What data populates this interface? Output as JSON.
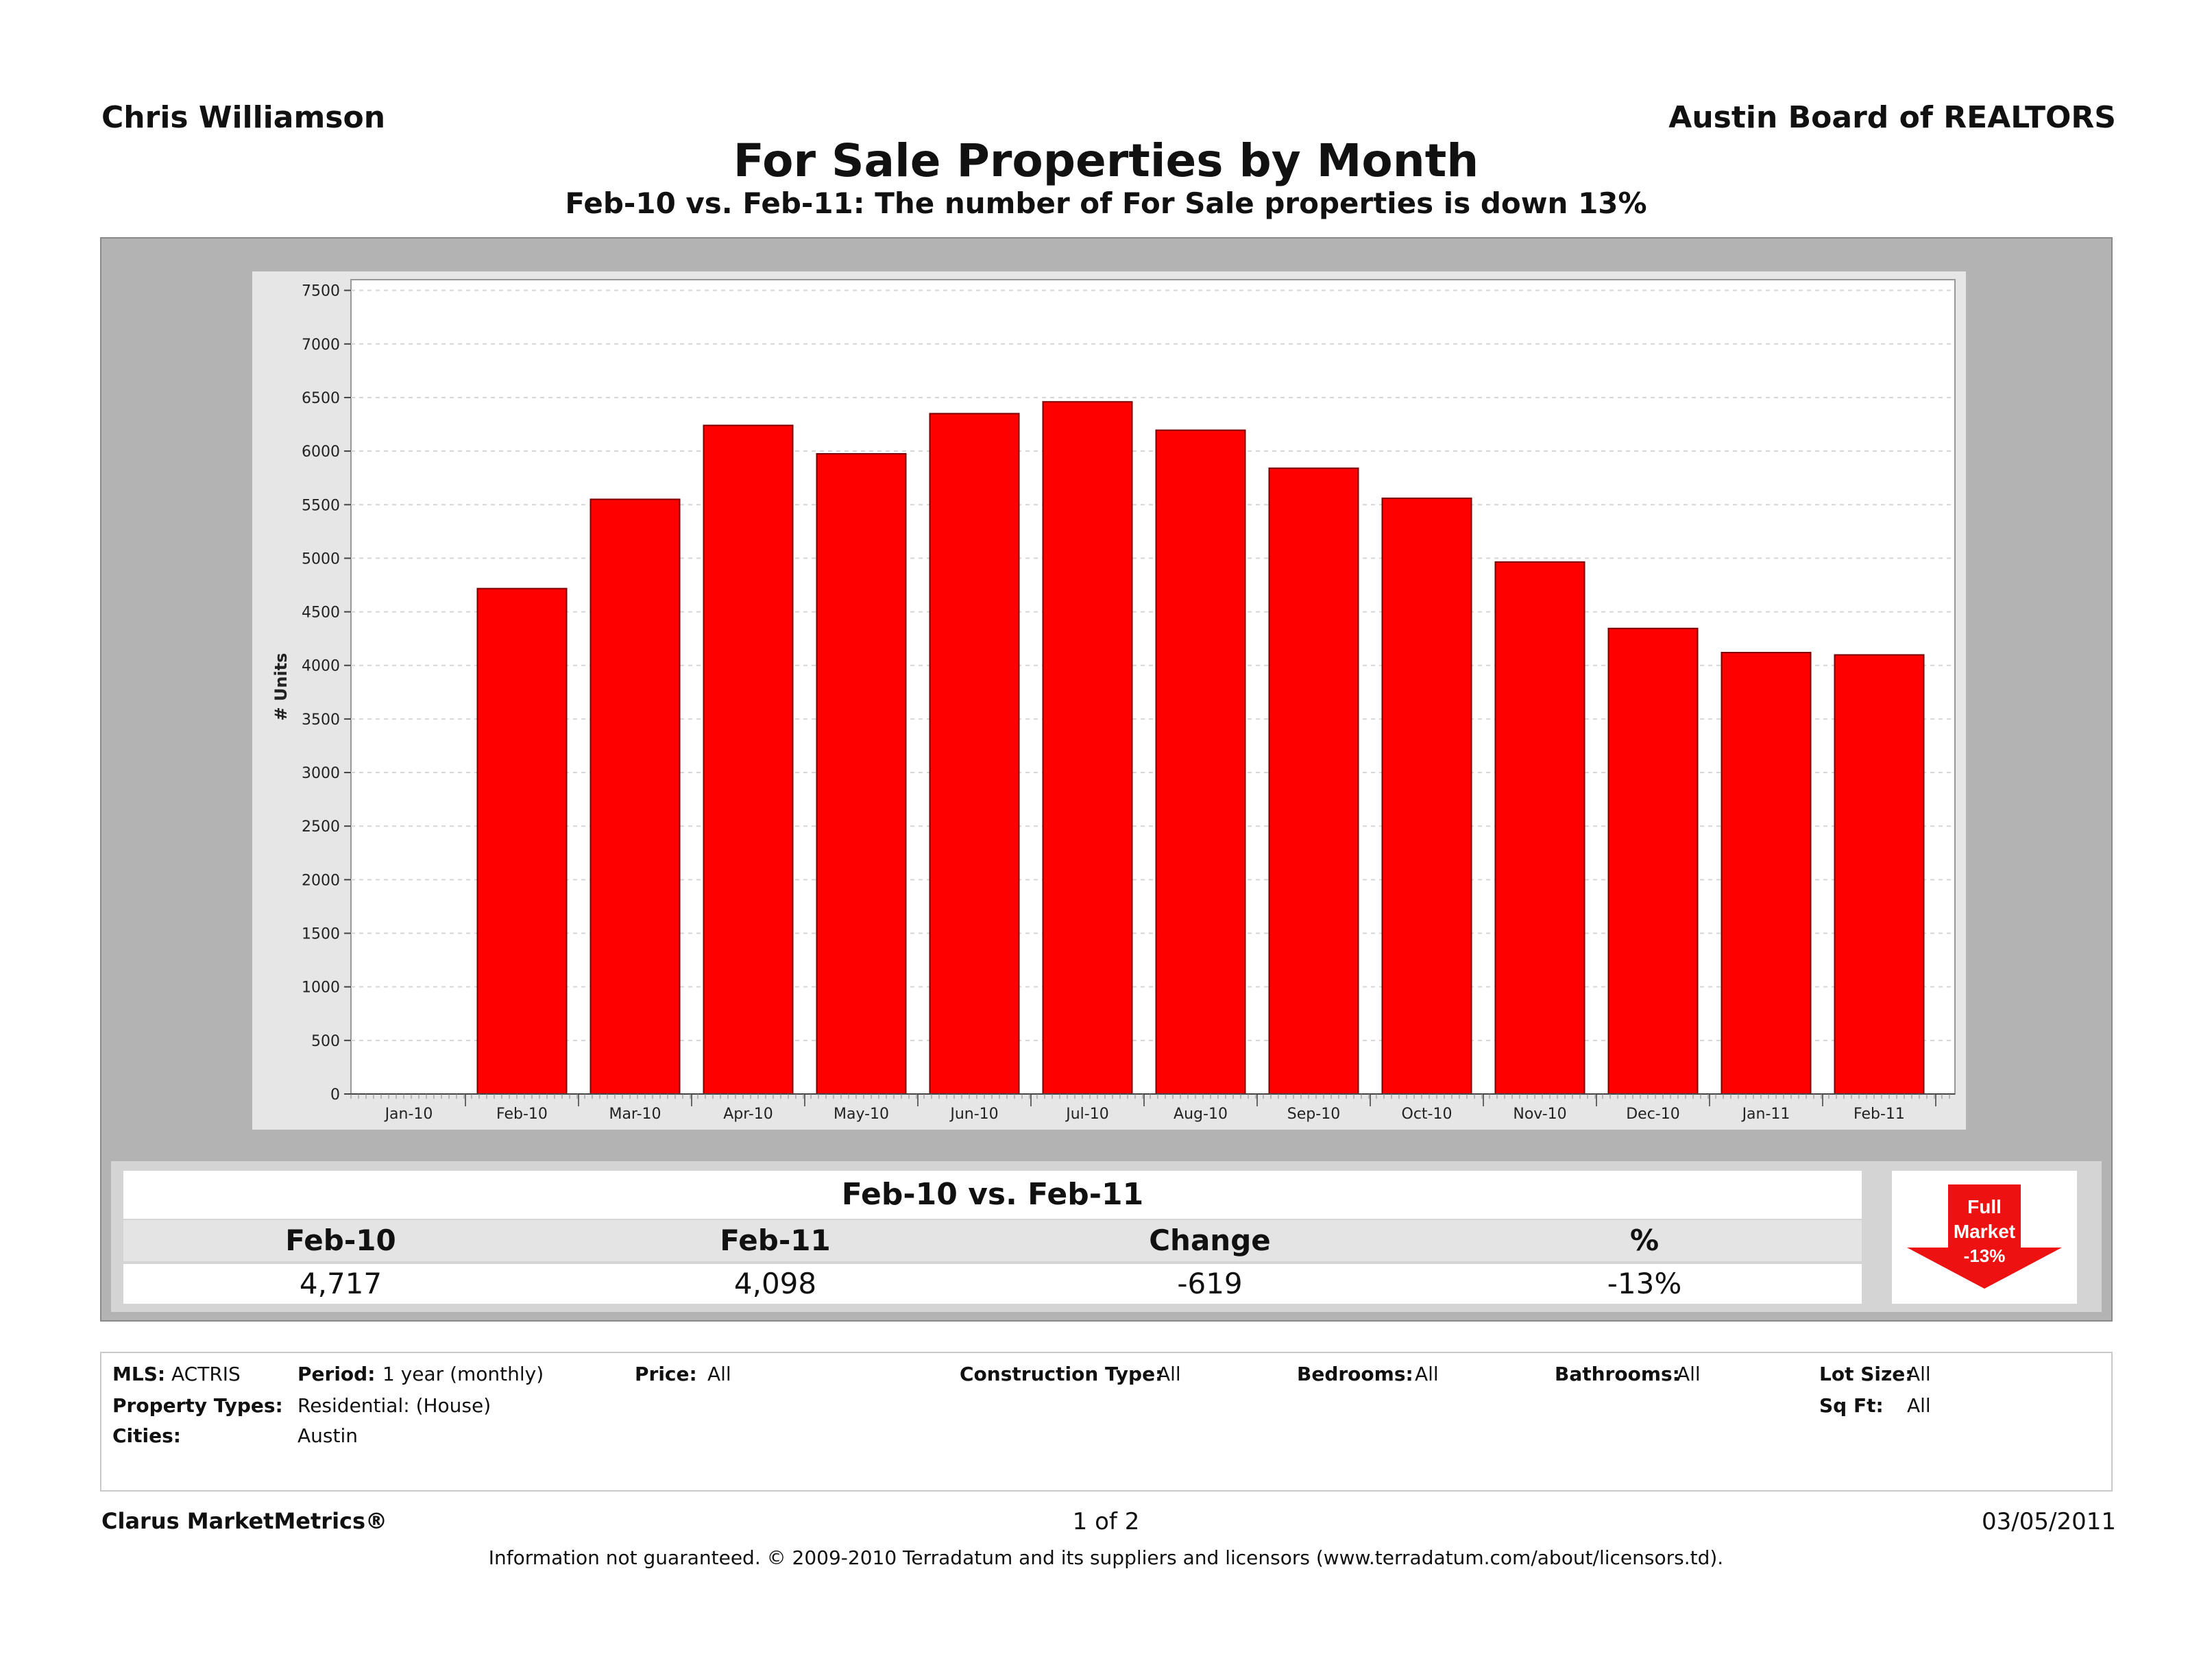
{
  "header": {
    "agent": "Chris Williamson",
    "board": "Austin Board of REALTORS",
    "title": "For Sale Properties by Month",
    "subtitle": "Feb-10 vs. Feb-11: The number of For Sale properties is down 13%"
  },
  "chart_data": {
    "type": "bar",
    "categories": [
      "Jan-10",
      "Feb-10",
      "Mar-10",
      "Apr-10",
      "May-10",
      "Jun-10",
      "Jul-10",
      "Aug-10",
      "Sep-10",
      "Oct-10",
      "Nov-10",
      "Dec-10",
      "Jan-11",
      "Feb-11"
    ],
    "values": [
      null,
      4717,
      5550,
      6240,
      5975,
      6350,
      6460,
      6195,
      5840,
      5560,
      4965,
      4345,
      4120,
      4098
    ],
    "ylabel": "# Units",
    "xlabel": "",
    "ylim": [
      0,
      7600
    ],
    "yticks": [
      0,
      500,
      1000,
      1500,
      2000,
      2500,
      3000,
      3500,
      4000,
      4500,
      5000,
      5500,
      6000,
      6500,
      7000,
      7500
    ],
    "grid": true,
    "bar_color": "#ff0000"
  },
  "summary": {
    "heading": "Feb-10 vs. Feb-11",
    "labels": [
      "Feb-10",
      "Feb-11",
      "Change",
      "%"
    ],
    "values": [
      "4,717",
      "4,098",
      "-619",
      "-13%"
    ],
    "badge": {
      "line1": "Full",
      "line2": "Market",
      "line3": "-13%",
      "color": "#ee1111"
    }
  },
  "criteria": {
    "mls_label": "MLS:",
    "mls": "ACTRIS",
    "period_label": "Period:",
    "period": "1 year (monthly)",
    "price_label": "Price:",
    "price": "All",
    "construction_label": "Construction Type:",
    "construction": "All",
    "bedrooms_label": "Bedrooms:",
    "bedrooms": "All",
    "bathrooms_label": "Bathrooms:",
    "bathrooms": "All",
    "lotsize_label": "Lot Size:",
    "lotsize": "All",
    "sqft_label": "Sq Ft:",
    "sqft": "All",
    "ptypes_label": "Property Types:",
    "ptypes": "Residential: (House)",
    "cities_label": "Cities:",
    "cities": "Austin"
  },
  "footer": {
    "brand": "Clarus MarketMetrics®",
    "page": "1 of 2",
    "date": "03/05/2011",
    "note": "Information not guaranteed.  © 2009-2010 Terradatum and its suppliers and licensors (www.terradatum.com/about/licensors.td)."
  }
}
